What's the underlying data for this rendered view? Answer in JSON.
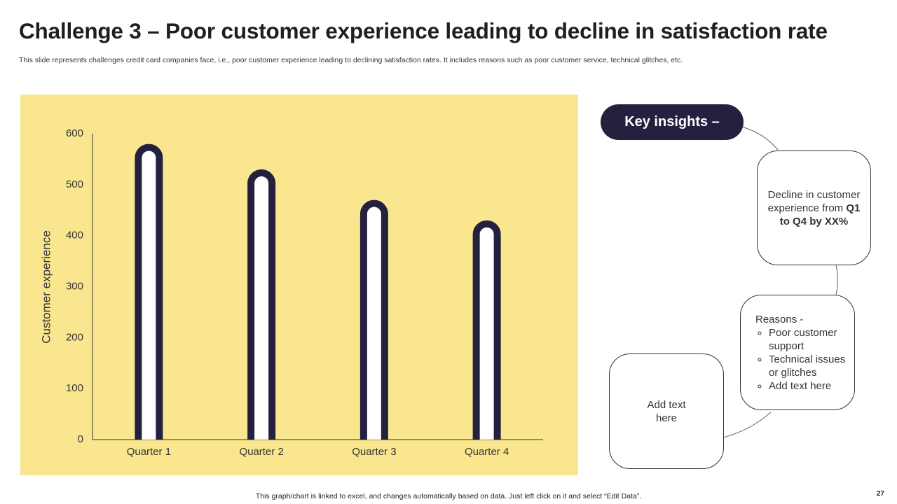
{
  "header": {
    "title": "Challenge 3 – Poor customer experience leading to decline in satisfaction rate",
    "subtitle": "This slide represents challenges credit card companies face, i.e., poor customer experience leading to declining satisfaction rates. It includes reasons such as poor customer service, technical glitches, etc."
  },
  "chart_data": {
    "type": "bar",
    "y_label": "Customer experience",
    "categories": [
      "Quarter 1",
      "Quarter 2",
      "Quarter 3",
      "Quarter 4"
    ],
    "values": [
      580,
      530,
      470,
      430
    ],
    "color": "#24213f",
    "background": "#f9e68e",
    "ylim": [
      0,
      600
    ],
    "yticks": [
      0,
      100,
      200,
      300,
      400,
      500,
      600
    ],
    "grid": false
  },
  "insights": {
    "title": "Key insights –",
    "box1": {
      "text": "Decline in customer experience from ",
      "bold": "Q1 to Q4 by XX%"
    },
    "box2": {
      "heading": "Reasons -",
      "items": [
        "Poor customer support",
        "Technical issues or glitches",
        "Add text here"
      ]
    },
    "box3": {
      "text": "Add text here"
    }
  },
  "footer": {
    "note": "This graph/chart is linked to excel,  and changes automatically based on data. Just left click on it and select “Edit Data”.",
    "page": "27"
  }
}
